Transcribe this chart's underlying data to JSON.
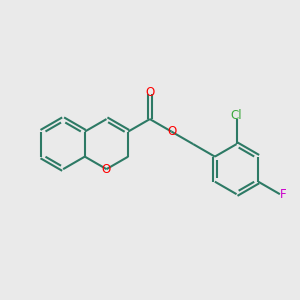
{
  "background_color": "#EAEAEA",
  "bond_color": "#2D7A65",
  "oxygen_color": "#FF0000",
  "chlorine_color": "#3DAA3D",
  "fluorine_color": "#CC00CC",
  "line_width": 1.5,
  "figsize": [
    3.0,
    3.0
  ],
  "dpi": 100,
  "xlim": [
    0,
    10
  ],
  "ylim": [
    0,
    10
  ]
}
